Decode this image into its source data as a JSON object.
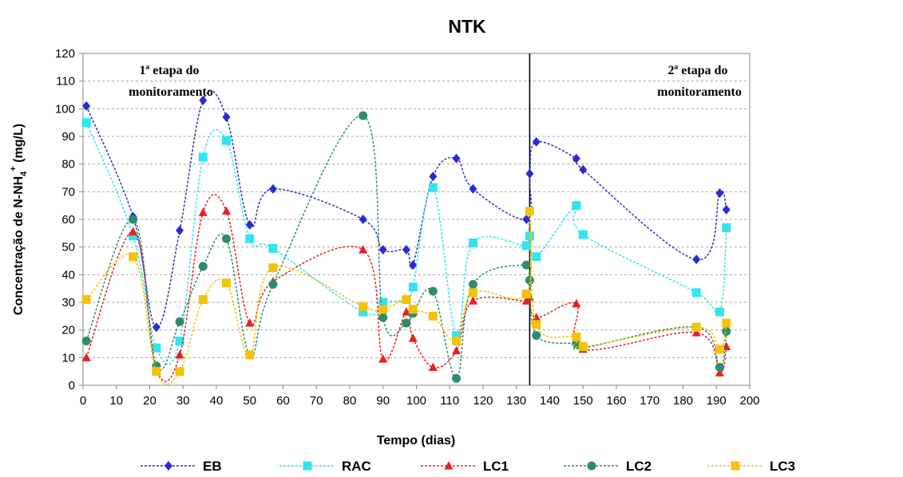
{
  "chart_data": {
    "type": "line",
    "title": "NTK",
    "xlabel": "Tempo (dias)",
    "ylabel_prefix": "Concentração de N-NH",
    "ylabel_sub": "4",
    "ylabel_sup": "+",
    "ylabel_suffix": " (mg/L)",
    "xlim": [
      0,
      200
    ],
    "ylim": [
      0,
      120
    ],
    "x_ticks": [
      0,
      10,
      20,
      30,
      40,
      50,
      60,
      70,
      80,
      90,
      100,
      110,
      120,
      130,
      140,
      150,
      160,
      170,
      180,
      190,
      200
    ],
    "y_ticks": [
      0,
      10,
      20,
      30,
      40,
      50,
      60,
      70,
      80,
      90,
      100,
      110,
      120
    ],
    "grid": "horizontal dashed",
    "legend_position": "bottom",
    "divider_x": 134,
    "annotations": [
      {
        "lines": [
          "1ª etapa do",
          "monitoramento"
        ]
      },
      {
        "lines": [
          "2ª etapa do",
          "monitoramento"
        ]
      }
    ],
    "series": [
      {
        "name": "EB",
        "color": "#2b2bcc",
        "marker": "diamond",
        "points": [
          [
            1,
            101
          ],
          [
            15,
            61
          ],
          [
            22,
            21
          ],
          [
            29,
            56
          ],
          [
            36,
            103
          ],
          [
            43,
            97
          ],
          [
            50,
            58
          ],
          [
            57,
            71
          ],
          [
            84,
            60
          ],
          [
            90,
            49
          ],
          [
            97,
            49
          ],
          [
            99,
            43.5
          ],
          [
            105,
            75.5
          ],
          [
            112,
            82
          ],
          [
            117,
            71
          ],
          [
            133,
            60
          ],
          [
            134,
            76.5
          ],
          [
            136,
            88
          ],
          [
            148,
            82
          ],
          [
            150,
            78
          ],
          [
            184,
            45.5
          ],
          [
            191,
            69.5
          ],
          [
            193,
            63.5
          ]
        ]
      },
      {
        "name": "RAC",
        "color": "#33e3f0",
        "marker": "square",
        "points": [
          [
            1,
            95
          ],
          [
            15,
            54
          ],
          [
            22,
            13.5
          ],
          [
            29,
            16
          ],
          [
            36,
            82.5
          ],
          [
            43,
            88.5
          ],
          [
            50,
            53
          ],
          [
            57,
            49.5
          ],
          [
            84,
            26.5
          ],
          [
            90,
            30
          ],
          [
            97,
            31
          ],
          [
            99,
            35.5
          ],
          [
            105,
            71.5
          ],
          [
            112,
            18
          ],
          [
            117,
            51.5
          ],
          [
            133,
            50.5
          ],
          [
            134,
            54
          ],
          [
            136,
            46.5
          ],
          [
            148,
            65
          ],
          [
            150,
            54.5
          ],
          [
            184,
            33.5
          ],
          [
            191,
            26.5
          ],
          [
            193,
            57
          ]
        ]
      },
      {
        "name": "LC1",
        "color": "#e82020",
        "marker": "triangle",
        "points": [
          [
            1,
            10
          ],
          [
            15,
            55.5
          ],
          [
            22,
            6
          ],
          [
            29,
            11
          ],
          [
            36,
            62.5
          ],
          [
            43,
            63
          ],
          [
            50,
            22.5
          ],
          [
            57,
            37.5
          ],
          [
            84,
            49
          ],
          [
            90,
            9.5
          ],
          [
            97,
            26.5
          ],
          [
            99,
            17
          ],
          [
            105,
            6.5
          ],
          [
            112,
            12.5
          ],
          [
            117,
            30.5
          ],
          [
            133,
            30.5
          ],
          [
            134,
            32
          ],
          [
            136,
            24.5
          ],
          [
            148,
            29.5
          ],
          [
            150,
            13
          ],
          [
            184,
            19
          ],
          [
            191,
            4.5
          ],
          [
            193,
            14
          ]
        ]
      },
      {
        "name": "LC2",
        "color": "#2f8c6a",
        "marker": "circle",
        "points": [
          [
            1,
            16
          ],
          [
            15,
            60
          ],
          [
            22,
            7
          ],
          [
            29,
            23
          ],
          [
            36,
            43
          ],
          [
            43,
            53
          ],
          [
            50,
            11
          ],
          [
            57,
            36.5
          ],
          [
            84,
            97.5
          ],
          [
            90,
            24.5
          ],
          [
            97,
            22.5
          ],
          [
            99,
            26
          ],
          [
            105,
            34
          ],
          [
            112,
            2.5
          ],
          [
            117,
            36.5
          ],
          [
            133,
            43.5
          ],
          [
            134,
            38
          ],
          [
            136,
            18
          ],
          [
            148,
            15
          ],
          [
            150,
            13.5
          ],
          [
            184,
            21
          ],
          [
            191,
            6.5
          ],
          [
            193,
            19.5
          ]
        ]
      },
      {
        "name": "LC3",
        "color": "#f5c20a",
        "marker": "square",
        "points": [
          [
            1,
            31
          ],
          [
            15,
            46.5
          ],
          [
            22,
            5
          ],
          [
            29,
            5
          ],
          [
            36,
            31
          ],
          [
            43,
            37
          ],
          [
            50,
            11
          ],
          [
            57,
            42.5
          ],
          [
            84,
            28.5
          ],
          [
            90,
            27.5
          ],
          [
            97,
            31
          ],
          [
            99,
            27.5
          ],
          [
            105,
            25
          ],
          [
            112,
            16
          ],
          [
            117,
            33.5
          ],
          [
            133,
            33
          ],
          [
            134,
            63
          ],
          [
            136,
            22
          ],
          [
            148,
            17.5
          ],
          [
            150,
            14
          ],
          [
            184,
            21
          ],
          [
            191,
            13
          ],
          [
            193,
            22.5
          ]
        ]
      }
    ]
  }
}
